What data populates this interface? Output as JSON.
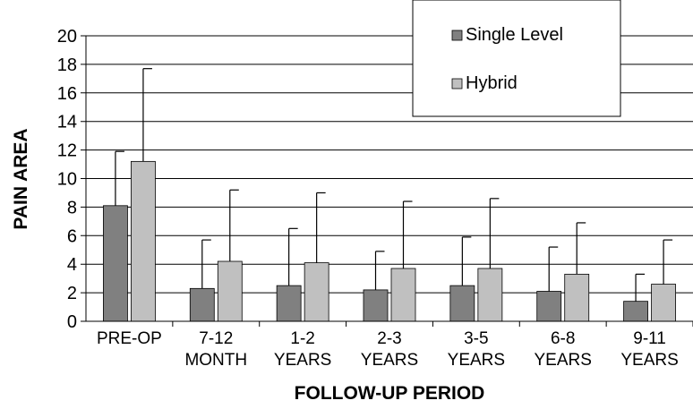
{
  "chart_data": {
    "type": "bar",
    "xlabel": "FOLLOW-UP PERIOD",
    "ylabel": "PAIN AREA",
    "categories": [
      "PRE-OP",
      "7-12 MONTH",
      "1-2 YEARS",
      "2-3 YEARS",
      "3-5 YEARS",
      "6-8 YEARS",
      "9-11 YEARS"
    ],
    "series": [
      {
        "name": "Single Level",
        "color": "#808080",
        "values": [
          8.1,
          2.3,
          2.5,
          2.2,
          2.5,
          2.1,
          1.4
        ],
        "errors": [
          3.8,
          3.4,
          4.0,
          2.7,
          3.4,
          3.1,
          1.9
        ]
      },
      {
        "name": "Hybrid",
        "color": "#c0c0c0",
        "values": [
          11.2,
          4.2,
          4.1,
          3.7,
          3.7,
          3.3,
          2.6
        ],
        "errors": [
          6.5,
          5.0,
          4.9,
          4.7,
          4.9,
          3.6,
          3.1
        ]
      }
    ],
    "ylim": [
      0,
      20
    ],
    "yticks": [
      0,
      2,
      4,
      6,
      8,
      10,
      12,
      14,
      16,
      18,
      20
    ],
    "grid": true
  }
}
